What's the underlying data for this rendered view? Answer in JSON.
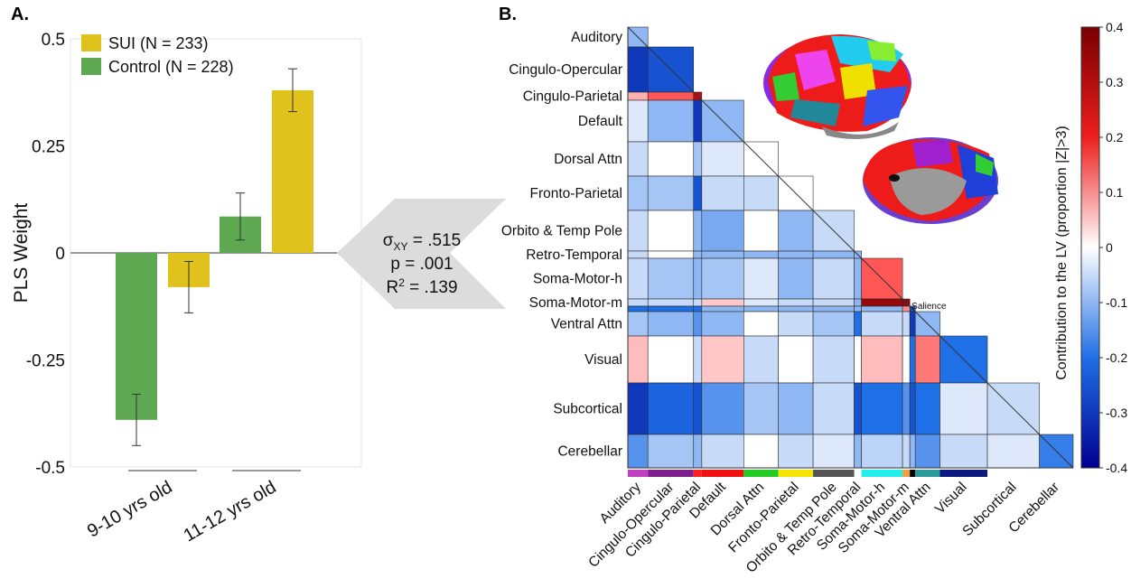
{
  "panel_a": {
    "label": "A."
  },
  "panel_b": {
    "label": "B."
  },
  "stats": {
    "sigma_prefix": "σ",
    "sigma_sub": "XY",
    "sigma_value": " = .515",
    "p_line": "p = .001",
    "r_prefix": "R",
    "r_sup": "2",
    "r_value": " = .139"
  },
  "chart_data": [
    {
      "type": "bar",
      "ylabel": "PLS Weight",
      "ylim": [
        -0.5,
        0.5
      ],
      "yticks": [
        0.5,
        0.25,
        0,
        -0.25,
        -0.5
      ],
      "ytick_labels": [
        "0.5",
        "0.25",
        "0",
        "-0.25",
        "-0.5"
      ],
      "categories": [
        "9-10 yrs old",
        "11-12 yrs old"
      ],
      "legend_position": "top-left",
      "series": [
        {
          "name": "Control",
          "n_label": "(N = 228)",
          "color": "#5ea851",
          "values": [
            -0.39,
            0.085
          ],
          "err_low": [
            -0.45,
            0.03
          ],
          "err_high": [
            -0.33,
            0.14
          ]
        },
        {
          "name": "SUI",
          "n_label": "(N = 233)",
          "color": "#e0c21c",
          "values": [
            -0.08,
            0.38
          ],
          "err_low": [
            -0.14,
            0.33
          ],
          "err_high": [
            -0.02,
            0.43
          ]
        }
      ]
    },
    {
      "type": "heatmap",
      "networks": [
        "Auditory",
        "Cingulo-Opercular",
        "Cingulo-Parietal",
        "Default",
        "Dorsal Attn",
        "Fronto-Parietal",
        "Orbito & Temp Pole",
        "Retro-Temporal",
        "Soma-Motor-h",
        "Soma-Motor-m",
        "Salience",
        "Ventral Attn",
        "Visual",
        "Subcortical",
        "Cerebellar"
      ],
      "bottom_labels": [
        "Auditory",
        "Cingulo-Opercular",
        "Cingulo-Parietal",
        "Default",
        "Dorsal Attn",
        "Fronto-Parietal",
        "Orbito & Temp Pole",
        "Retro-Temporal",
        "Soma-Motor-h",
        "Soma-Motor-m",
        "Ventral Attn",
        "Visual",
        "Subcortical",
        "Cerebellar"
      ],
      "salience_label": "Salience",
      "network_colors": [
        "#c040c0",
        "#7a1f8c",
        "#ff2020",
        "#ee1111",
        "#22cc22",
        "#f5e400",
        "#555555",
        "#ffffff",
        "#22eeee",
        "#f0a040",
        "#000000",
        "#2a9a9a",
        "#0a1a80",
        "#ffffff",
        "#ffffff"
      ],
      "values": [
        [
          -0.1
        ],
        [
          -0.3,
          -0.25
        ],
        [
          0.07,
          0.15,
          0.3
        ],
        [
          -0.03,
          -0.1,
          -0.3,
          -0.1
        ],
        [
          -0.05,
          0,
          -0.08,
          -0.03,
          0
        ],
        [
          -0.08,
          -0.08,
          -0.25,
          -0.05,
          -0.05,
          0
        ],
        [
          -0.05,
          0,
          -0.1,
          -0.12,
          0,
          -0.1,
          -0.05
        ],
        [
          -0.05,
          0,
          -0.1,
          -0.1,
          -0.1,
          -0.1,
          -0.1,
          -0.1
        ],
        [
          -0.05,
          -0.08,
          -0.1,
          -0.08,
          -0.03,
          -0.1,
          -0.05,
          -0.1,
          0.15
        ],
        [
          -0.05,
          -0.05,
          -0.05,
          0.05,
          -0.03,
          -0.05,
          -0.05,
          -0.1,
          0.35,
          0.35
        ],
        [
          -0.2,
          -0.2,
          -0.2,
          -0.1,
          -0.1,
          -0.1,
          -0.1,
          -0.1,
          -0.1,
          0.1,
          -0.25
        ],
        [
          -0.08,
          -0.1,
          -0.15,
          -0.1,
          0,
          -0.05,
          -0.08,
          -0.2,
          -0.05,
          -0.05,
          -0.3,
          -0.1
        ],
        [
          0.06,
          0,
          -0.05,
          0.05,
          -0.05,
          0,
          -0.05,
          0,
          0.06,
          0,
          -0.2,
          0.12,
          -0.2
        ],
        [
          -0.3,
          -0.22,
          -0.25,
          -0.15,
          -0.08,
          -0.1,
          -0.05,
          -0.25,
          -0.2,
          -0.15,
          -0.25,
          -0.2,
          -0.03,
          -0.05
        ],
        [
          -0.15,
          -0.08,
          -0.1,
          -0.05,
          0,
          -0.05,
          -0.03,
          -0.1,
          -0.06,
          -0.05,
          -0.1,
          -0.15,
          -0.05,
          -0.03,
          -0.18
        ]
      ],
      "colorbar": {
        "label": "Contribution to the LV (proportion |Z|>3)",
        "range": [
          -0.4,
          0.4
        ],
        "ticks": [
          0.4,
          0.3,
          0.2,
          0.1,
          0,
          -0.1,
          -0.2,
          -0.3,
          -0.4
        ],
        "tick_labels": [
          "0.4",
          "0.3",
          "0.2",
          "0.1",
          "0",
          "-0.1",
          "-0.2",
          "-0.3",
          "-0.4"
        ]
      }
    }
  ]
}
